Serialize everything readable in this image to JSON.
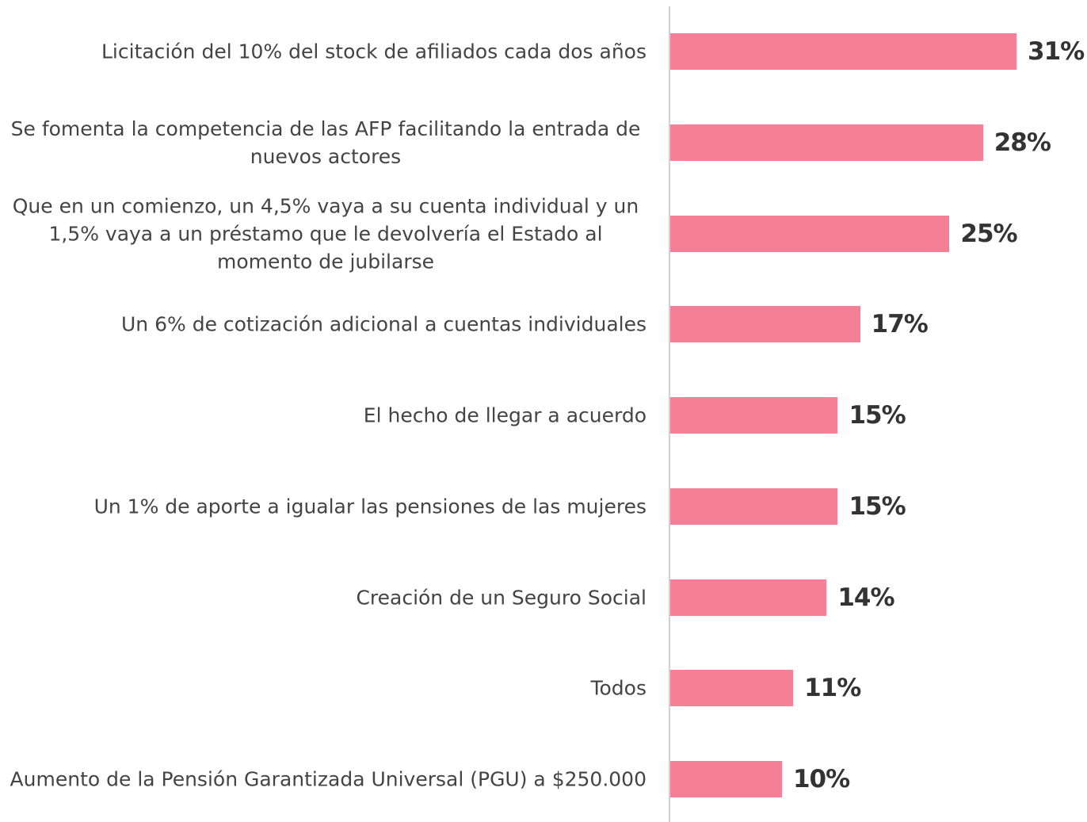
{
  "chart_data": {
    "type": "bar",
    "orientation": "horizontal",
    "categories": [
      "Licitación del 10% del stock de afiliados cada dos años",
      "Se fomenta la competencia de las AFP facilitando la entrada de nuevos actores",
      "Que en un comienzo, un 4,5% vaya a su cuenta individual y un 1,5% vaya a un préstamo que le devolvería el Estado al momento de jubilarse",
      "Un 6% de cotización adicional a cuentas individuales",
      "El hecho de llegar a acuerdo",
      "Un 1% de aporte a igualar las pensiones de las mujeres",
      "Creación de un Seguro Social",
      "Todos",
      "Aumento de la Pensión Garantizada Universal (PGU) a $250.000"
    ],
    "values": [
      31,
      28,
      25,
      17,
      15,
      15,
      14,
      11,
      10
    ],
    "value_labels": [
      "31%",
      "28%",
      "25%",
      "17%",
      "15%",
      "15%",
      "14%",
      "11%",
      "10%"
    ],
    "color": "#f47f96",
    "xlim": [
      0,
      31
    ]
  }
}
